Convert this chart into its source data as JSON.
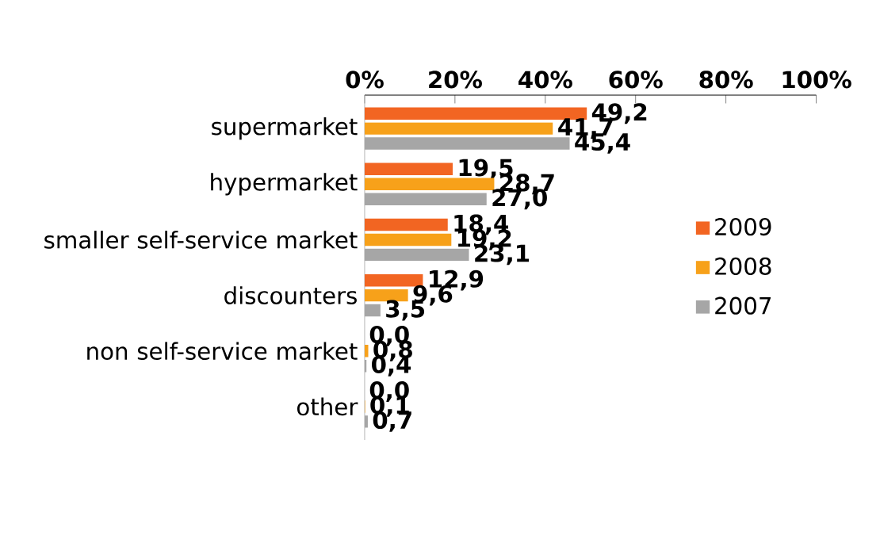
{
  "chart_data": {
    "type": "bar",
    "orientation": "horizontal",
    "categories": [
      "supermarket",
      "hypermarket",
      "smaller self-service market",
      "discounters",
      "non self-service market",
      "other"
    ],
    "series": [
      {
        "name": "2009",
        "color": "#f26522",
        "values": [
          49.2,
          19.5,
          18.4,
          12.9,
          0.0,
          0.0
        ],
        "value_labels": [
          "49,2",
          "19,5",
          "18,4",
          "12,9",
          "0,0",
          "0,0"
        ]
      },
      {
        "name": "2008",
        "color": "#f7a11a",
        "values": [
          41.7,
          28.7,
          19.2,
          9.6,
          0.8,
          0.1
        ],
        "value_labels": [
          "41,7",
          "28,7",
          "19,2",
          "9,6",
          "0,8",
          "0,1"
        ]
      },
      {
        "name": "2007",
        "color": "#a6a6a6",
        "values": [
          45.4,
          27.0,
          23.1,
          3.5,
          0.4,
          0.7
        ],
        "value_labels": [
          "45,4",
          "27,0",
          "23,1",
          "3,5",
          "0,4",
          "0,7"
        ]
      }
    ],
    "xlim": [
      0,
      100
    ],
    "xticks": [
      {
        "value": 0,
        "label": "0%"
      },
      {
        "value": 20,
        "label": "20%"
      },
      {
        "value": 40,
        "label": "40%"
      },
      {
        "value": 60,
        "label": "60%"
      },
      {
        "value": 80,
        "label": "80%"
      },
      {
        "value": 100,
        "label": "100%"
      }
    ],
    "legend": "right",
    "grid": false
  }
}
